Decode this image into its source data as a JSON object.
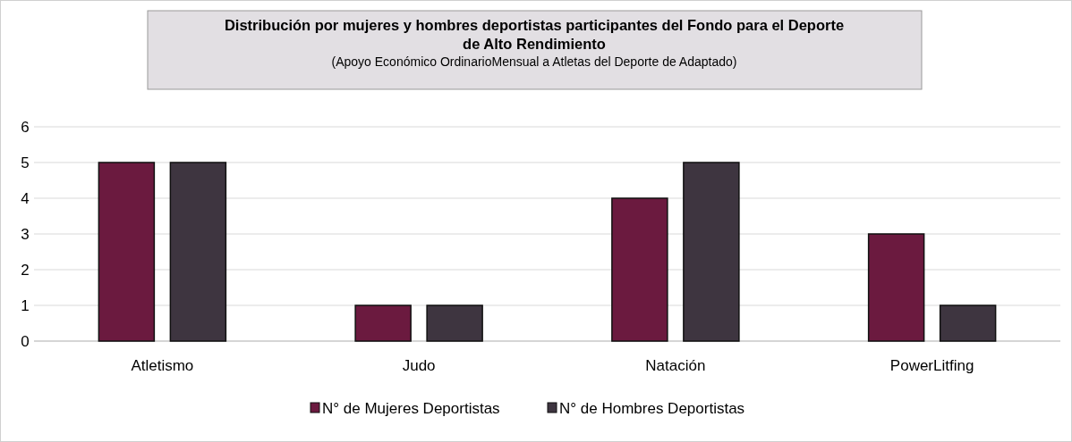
{
  "chart_data": {
    "type": "bar",
    "title": "Distribución por mujeres y hombres deportistas participantes del Fondo para el Deporte de Alto Rendimiento",
    "subtitle": "(Apoyo Económico OrdinarioMensual a Atletas del Deporte de Adaptado)",
    "categories": [
      "Atletismo",
      "Judo",
      "Natación",
      "PowerLitfing"
    ],
    "series": [
      {
        "name": "N° de Mujeres Deportistas",
        "color": "#6b1a3f",
        "values": [
          5,
          1,
          4,
          3
        ]
      },
      {
        "name": "N° de Hombres Deportistas",
        "color": "#3e3540",
        "values": [
          5,
          1,
          5,
          1
        ]
      }
    ],
    "ylim": [
      0,
      6
    ],
    "yticks": [
      0,
      1,
      2,
      3,
      4,
      5,
      6
    ],
    "grid": "y",
    "legend": "bottom"
  }
}
